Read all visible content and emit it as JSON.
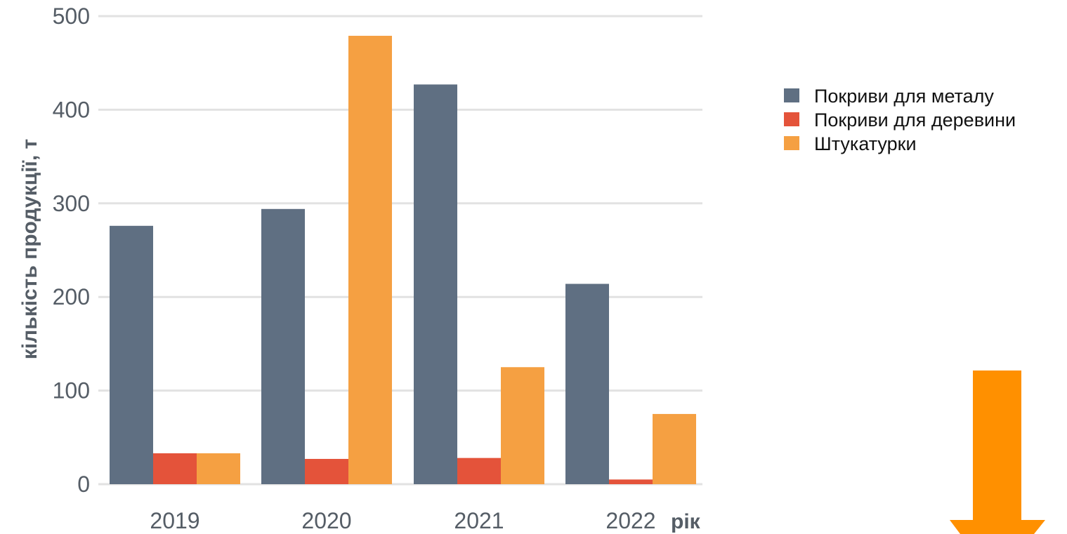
{
  "chart_data": {
    "type": "bar",
    "categories": [
      "2019",
      "2020",
      "2021",
      "2022"
    ],
    "series": [
      {
        "name": "Покриви для металу",
        "color": "#5f6f82",
        "values": [
          276,
          294,
          427,
          214
        ]
      },
      {
        "name": "Покриви для деревини",
        "color": "#e4533a",
        "values": [
          33,
          27,
          28,
          5
        ]
      },
      {
        "name": "Штукатурки",
        "color": "#f5a042",
        "values": [
          33,
          479,
          125,
          75
        ]
      }
    ],
    "xlabel": "рік",
    "ylabel": "кількість продукції, т",
    "ylim": [
      0,
      500
    ],
    "yticks": [
      0,
      100,
      200,
      300,
      400,
      500
    ],
    "grid": true,
    "legend_placement": "top-right"
  },
  "decoration": {
    "arrow_color": "#ff9000",
    "arrow_icon": "down-arrow-icon"
  }
}
